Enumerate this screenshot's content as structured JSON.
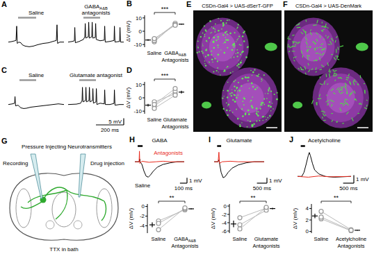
{
  "chart_data": [
    {
      "panel": "A",
      "type": "line",
      "tick_labels": false,
      "xlim": [
        0,
        400
      ],
      "ylim": [
        -8,
        16
      ],
      "series": [
        {
          "name": "Saline",
          "color": "#000000",
          "x": [
            0,
            20,
            40,
            55,
            60,
            64,
            75,
            90,
            100,
            120,
            150,
            180,
            210,
            250,
            290,
            320,
            345,
            350,
            354,
            370,
            400
          ],
          "values": [
            0,
            0.3,
            0.8,
            1.2,
            12,
            -1,
            0,
            -0.5,
            -2,
            -3,
            -3.5,
            -3,
            -2,
            -1,
            -0.5,
            0.5,
            1.2,
            13,
            -1,
            0,
            0
          ],
          "stimulus": [
            70,
            200
          ]
        },
        {
          "name": "GABAA&B antagonists",
          "color": "#000000",
          "x": [
            0,
            30,
            45,
            48,
            52,
            80,
            110,
            120,
            123,
            127,
            145,
            148,
            152,
            170,
            173,
            177,
            195,
            198,
            202,
            230,
            260,
            263,
            267,
            300,
            330,
            333,
            337,
            370,
            373,
            377,
            400
          ],
          "values": [
            0,
            0.5,
            1,
            11,
            -0.5,
            0.5,
            2,
            4,
            14,
            3,
            4,
            15,
            3,
            4,
            15,
            3,
            3.5,
            14,
            2,
            1,
            1.5,
            12,
            0,
            0.5,
            1.2,
            12,
            0,
            0.5,
            11,
            0,
            0
          ],
          "stimulus": [
            110,
            230
          ]
        }
      ]
    },
    {
      "panel": "B",
      "type": "scatter",
      "marker": "circle",
      "color": "#999999",
      "categories": [
        "Saline",
        "GABAA&B Antagonists"
      ],
      "values": [
        [
          -6,
          -8,
          -7,
          -5.5
        ],
        [
          5.5,
          6,
          5,
          4.5
        ]
      ],
      "mean": [
        -6.6,
        5.3
      ],
      "error": [
        0.6,
        0.3
      ],
      "ylim": [
        -12,
        12
      ],
      "yticks": [
        -10,
        0,
        10
      ],
      "y_label": "ΔV (mV)",
      "significance": "***"
    },
    {
      "panel": "C",
      "type": "line",
      "tick_labels": false,
      "xlim": [
        0,
        400
      ],
      "ylim": [
        -8,
        16
      ],
      "series": [
        {
          "name": "Saline",
          "color": "#000000",
          "x": [
            0,
            30,
            45,
            48,
            52,
            70,
            90,
            110,
            130,
            160,
            200,
            240,
            280,
            320,
            360,
            400
          ],
          "values": [
            0,
            0.5,
            1,
            6,
            -1,
            -0.5,
            -2.5,
            -3,
            -2.8,
            -2,
            -1.5,
            -1,
            -0.5,
            0,
            0.5,
            0
          ],
          "stimulus": [
            80,
            200
          ]
        },
        {
          "name": "Glutamate antagonist",
          "color": "#000000",
          "x": [
            0,
            60,
            90,
            100,
            103,
            107,
            125,
            128,
            132,
            150,
            153,
            157,
            175,
            178,
            182,
            200,
            203,
            207,
            230,
            260,
            263,
            267,
            300,
            330,
            333,
            337,
            370,
            400
          ],
          "values": [
            0,
            0.3,
            1,
            3,
            13,
            2,
            3,
            13,
            2,
            3,
            13,
            2,
            3,
            12,
            1,
            2,
            12,
            0,
            1,
            0.5,
            11,
            0,
            0,
            0.8,
            11,
            -0.5,
            0,
            0
          ],
          "stimulus": [
            80,
            200
          ]
        }
      ],
      "scale_bar": {
        "x": 200,
        "y": 5,
        "x_label": "200 ms",
        "y_label": "5 mV"
      }
    },
    {
      "panel": "D",
      "type": "scatter",
      "marker": "circle",
      "color": "#999999",
      "categories": [
        "Saline",
        "Glutamate Antagonists"
      ],
      "values": [
        [
          -3,
          -6,
          -8,
          -5
        ],
        [
          3,
          5,
          2,
          7
        ]
      ],
      "mean": [
        -5.5,
        4.3
      ],
      "error": [
        1,
        1.1
      ],
      "ylim": [
        -12,
        12
      ],
      "yticks": [
        -10,
        0,
        10
      ],
      "y_label": "ΔV (mV)",
      "significance": "***"
    },
    {
      "panel": "E",
      "type": "image",
      "title": "CSDn-Gal4 > UAS-dSerT-GFP"
    },
    {
      "panel": "F",
      "type": "image",
      "title": "CSDn-Gal4 > UAS-DenMark"
    },
    {
      "panel": "G",
      "type": "diagram",
      "title": "Pressure Injecting Neurotransmitters",
      "labels": [
        "Recording",
        "Drug injection",
        "TTX in bath"
      ]
    },
    {
      "panel": "H",
      "type": "line",
      "title": "GABA",
      "tick_labels": false,
      "xlim": [
        0,
        700
      ],
      "ylim": [
        -3.5,
        2.5
      ],
      "stimulus": [
        40,
        110
      ],
      "series": [
        {
          "name": "Saline",
          "color": "#000000",
          "x": [
            0,
            60,
            70,
            75,
            100,
            130,
            160,
            190,
            220,
            260,
            320,
            400,
            500,
            600,
            700
          ],
          "values": [
            0,
            0,
            0.5,
            0,
            -0.5,
            -1.8,
            -2.7,
            -2.9,
            -2.5,
            -1.8,
            -1,
            -0.5,
            -0.2,
            0,
            0
          ]
        },
        {
          "name": "Antagonists",
          "color": "#e8291c",
          "x": [
            0,
            60,
            65,
            70,
            100,
            200,
            300,
            400,
            500,
            700
          ],
          "values": [
            0,
            0,
            2,
            -0.3,
            0.1,
            -0.1,
            0,
            0.1,
            0,
            0
          ]
        }
      ],
      "scale_bar": {
        "x": 100,
        "y": 1,
        "x_label": "100 ms",
        "y_label": "1 mV"
      }
    },
    {
      "type": "scatter",
      "marker": "circle",
      "color": "#999999",
      "categories": [
        "Saline",
        "GABAA&B Antagonists"
      ],
      "values": [
        [
          -3,
          -3.5,
          -4.8
        ],
        [
          -0.7,
          -0.5,
          -0.3
        ]
      ],
      "mean": [
        -3.8,
        -0.5
      ],
      "error": [
        0.5,
        0.1
      ],
      "ylim": [
        -5.5,
        0.5
      ],
      "yticks": [
        -4,
        -2,
        0
      ],
      "y_label": "ΔV (mV)",
      "significance": "**"
    },
    {
      "panel": "I",
      "type": "line",
      "title": "Glutamate",
      "tick_labels": false,
      "xlim": [
        0,
        2500
      ],
      "ylim": [
        -3.5,
        2.5
      ],
      "stimulus": [
        150,
        350
      ],
      "series": [
        {
          "color": "#000000",
          "x": [
            0,
            200,
            250,
            280,
            350,
            450,
            550,
            700,
            900,
            1200,
            1600,
            2000,
            2500
          ],
          "values": [
            0,
            0,
            0.4,
            -0.5,
            -2,
            -3,
            -2.8,
            -2,
            -1.2,
            -0.6,
            -0.2,
            0,
            0
          ]
        },
        {
          "color": "#e8291c",
          "x": [
            0,
            200,
            240,
            270,
            400,
            800,
            1200,
            1800,
            2500
          ],
          "values": [
            0,
            0,
            1.8,
            -0.3,
            0,
            0.1,
            0,
            0,
            0
          ]
        }
      ],
      "scale_bar": {
        "x": 500,
        "y": 1,
        "x_label": "500 ms",
        "y_label": "1 mV"
      }
    },
    {
      "type": "scatter",
      "marker": "circle",
      "color": "#999999",
      "categories": [
        "Saline",
        "Glutamate Antagonists"
      ],
      "values": [
        [
          -2.8,
          -4.5,
          -5.5
        ],
        [
          -0.5,
          -1,
          -0.3
        ]
      ],
      "mean": [
        -4.3,
        -0.6
      ],
      "error": [
        0.8,
        0.2
      ],
      "ylim": [
        -6.5,
        0.5
      ],
      "yticks": [
        -6,
        -4,
        -2,
        0
      ],
      "y_label": "ΔV (mV)",
      "significance": "**"
    },
    {
      "panel": "J",
      "type": "line",
      "title": "Acetylcholine",
      "tick_labels": false,
      "xlim": [
        0,
        2500
      ],
      "ylim": [
        -0.5,
        3.5
      ],
      "stimulus": [
        150,
        350
      ],
      "series": [
        {
          "color": "#000000",
          "x": [
            0,
            200,
            300,
            400,
            500,
            550,
            600,
            700,
            800,
            1000,
            1300,
            1700,
            2500
          ],
          "values": [
            0,
            0,
            0.5,
            1.5,
            2.6,
            3,
            2.6,
            1.6,
            0.8,
            0.3,
            0,
            -0.1,
            0
          ]
        },
        {
          "color": "#e8291c",
          "x": [
            0,
            500,
            1000,
            1500,
            2500
          ],
          "values": [
            0,
            -0.1,
            0.05,
            -0.05,
            0
          ]
        }
      ],
      "scale_bar": {
        "x": 500,
        "y": 1,
        "x_label": "500 ms",
        "y_label": "1 mV"
      }
    },
    {
      "type": "scatter",
      "marker": "circle",
      "color": "#999999",
      "categories": [
        "Saline",
        "Acetylcholine Antagonists"
      ],
      "values": [
        [
          2.2,
          3.5,
          2.5
        ],
        [
          0.1,
          0.3,
          0.2
        ]
      ],
      "mean": [
        2.7,
        0.2
      ],
      "error": [
        0.4,
        0.06
      ],
      "ylim": [
        -0.3,
        4.8
      ],
      "yticks": [
        0,
        2,
        4
      ],
      "y_label": "ΔV (mV)",
      "significance": "**"
    }
  ]
}
